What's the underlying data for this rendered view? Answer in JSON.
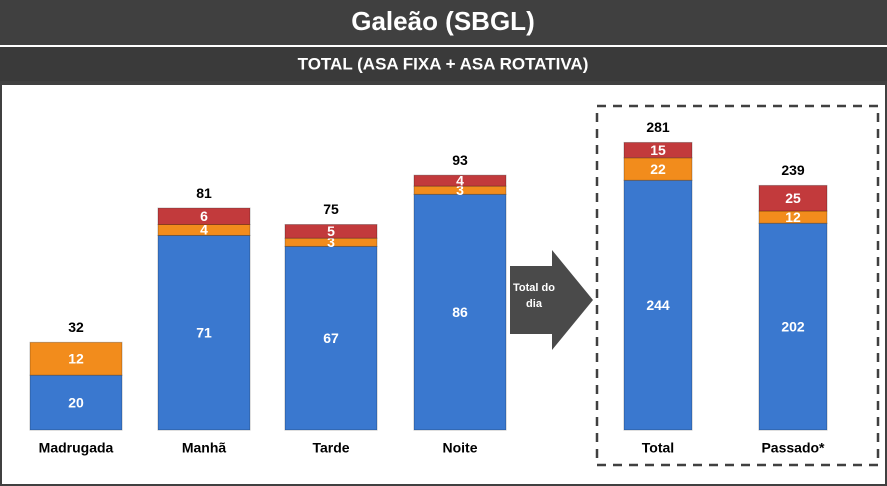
{
  "header": {
    "title": "Galeão (SBGL)",
    "subtitle": "TOTAL (ASA FIXA + ASA ROTATIVA)"
  },
  "annotation": [
    "Total do",
    "dia"
  ],
  "chart_data": [
    {
      "type": "bar",
      "stacked": true,
      "categories": [
        "Madrugada",
        "Manhã",
        "Tarde",
        "Noite"
      ],
      "series": [
        {
          "color": "#3a78cf",
          "values": [
            20,
            71,
            67,
            86
          ]
        },
        {
          "color": "#f28c1c",
          "values": [
            12,
            4,
            3,
            3
          ]
        },
        {
          "color": "#c23a3c",
          "values": [
            null,
            6,
            5,
            4
          ]
        }
      ],
      "totals": [
        32,
        81,
        75,
        93
      ],
      "ylim": [
        0,
        100
      ]
    },
    {
      "type": "bar",
      "stacked": true,
      "categories": [
        "Total",
        "Passado*"
      ],
      "series": [
        {
          "color": "#3a78cf",
          "values": [
            244,
            202
          ]
        },
        {
          "color": "#f28c1c",
          "values": [
            22,
            12
          ]
        },
        {
          "color": "#c23a3c",
          "values": [
            15,
            25
          ]
        }
      ],
      "totals": [
        281,
        239
      ],
      "ylim": [
        0,
        300
      ]
    }
  ]
}
